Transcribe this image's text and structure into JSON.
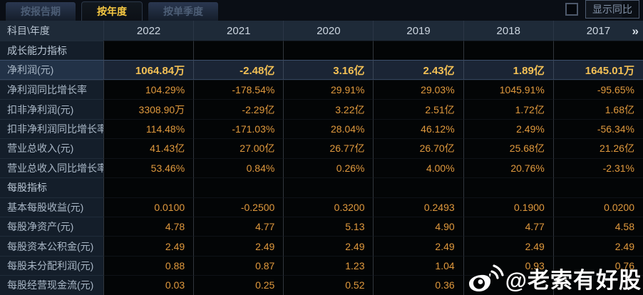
{
  "tabs": [
    {
      "id": "by-report-period",
      "label": "按报告期",
      "active": false
    },
    {
      "id": "by-year",
      "label": "按年度",
      "active": true
    },
    {
      "id": "by-quarter",
      "label": "按单季度",
      "active": false
    }
  ],
  "controls": {
    "show_yoy_label": "显示同比",
    "checkbox_checked": false
  },
  "table": {
    "corner_label": "科目\\年度",
    "years": [
      "2022",
      "2021",
      "2020",
      "2019",
      "2018",
      "2017"
    ],
    "more_indicator": "»",
    "rows": [
      {
        "label": "成长能力指标",
        "type": "section",
        "values": [
          "",
          "",
          "",
          "",
          "",
          ""
        ]
      },
      {
        "label": "净利润(元)",
        "type": "highlight",
        "values": [
          "1064.84万",
          "-2.48亿",
          "3.16亿",
          "2.43亿",
          "1.89亿",
          "1645.01万"
        ]
      },
      {
        "label": "净利润同比增长率",
        "type": "normal",
        "values": [
          "104.29%",
          "-178.54%",
          "29.91%",
          "29.03%",
          "1045.91%",
          "-95.65%"
        ]
      },
      {
        "label": "扣非净利润(元)",
        "type": "normal",
        "values": [
          "3308.90万",
          "-2.29亿",
          "3.22亿",
          "2.51亿",
          "1.72亿",
          "1.68亿"
        ]
      },
      {
        "label": "扣非净利润同比增长率",
        "type": "normal",
        "values": [
          "114.48%",
          "-171.03%",
          "28.04%",
          "46.12%",
          "2.49%",
          "-56.34%"
        ]
      },
      {
        "label": "营业总收入(元)",
        "type": "normal",
        "values": [
          "41.43亿",
          "27.00亿",
          "26.77亿",
          "26.70亿",
          "25.68亿",
          "21.26亿"
        ]
      },
      {
        "label": "营业总收入同比增长率",
        "type": "normal",
        "values": [
          "53.46%",
          "0.84%",
          "0.26%",
          "4.00%",
          "20.76%",
          "-2.31%"
        ]
      },
      {
        "label": "每股指标",
        "type": "section",
        "values": [
          "",
          "",
          "",
          "",
          "",
          ""
        ]
      },
      {
        "label": "基本每股收益(元)",
        "type": "normal",
        "values": [
          "0.0100",
          "-0.2500",
          "0.3200",
          "0.2493",
          "0.1900",
          "0.0200"
        ]
      },
      {
        "label": "每股净资产(元)",
        "type": "normal",
        "values": [
          "4.78",
          "4.77",
          "5.13",
          "4.90",
          "4.77",
          "4.58"
        ]
      },
      {
        "label": "每股资本公积金(元)",
        "type": "normal",
        "values": [
          "2.49",
          "2.49",
          "2.49",
          "2.49",
          "2.49",
          "2.49"
        ]
      },
      {
        "label": "每股未分配利润(元)",
        "type": "normal",
        "values": [
          "0.88",
          "0.87",
          "1.23",
          "1.04",
          "0.93",
          "0.76"
        ]
      },
      {
        "label": "每股经营现金流(元)",
        "type": "normal",
        "values": [
          "0.03",
          "0.25",
          "0.52",
          "0.36",
          "",
          ""
        ]
      }
    ]
  },
  "watermark": {
    "text": "@老索有好股",
    "icon": "weibo-icon"
  },
  "colors": {
    "page_bg": "#0a0d12",
    "accent_gold": "#f6c843",
    "value_orange": "#e0993d",
    "highlight_value": "#f3c055",
    "header_bg": "#1e2a38",
    "label_bg": "#141e2a",
    "data_bg": "#030506",
    "highlight_bg": "#1b2535",
    "watermark_white": "#ffffff"
  }
}
